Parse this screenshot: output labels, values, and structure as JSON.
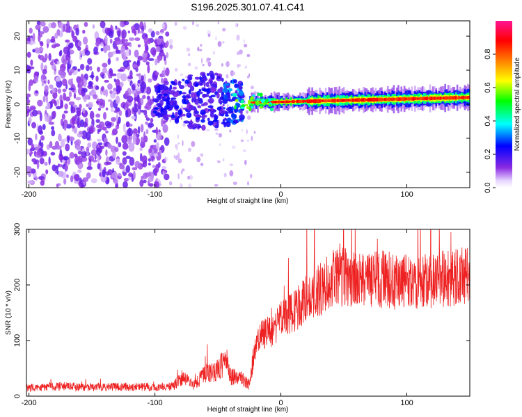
{
  "title": "S196.2025.301.07.41.C41",
  "chart_data": [
    {
      "type": "heatmap",
      "panel": "spectrogram",
      "xlabel": "Height of straight line (km)",
      "ylabel": "Frequency (Hz)",
      "xlim": [
        -202,
        150
      ],
      "ylim": [
        -24.5,
        24.5
      ],
      "xticks": [
        -200,
        -100,
        0,
        100
      ],
      "yticks": [
        -20,
        -10,
        0,
        10,
        20
      ],
      "colorbar": {
        "label": "Normalized spectral amplitude",
        "range": [
          0.0,
          1.0
        ],
        "ticks": [
          0.0,
          0.2,
          0.4,
          0.6,
          0.8
        ],
        "tick_labels": [
          "0.0",
          "0.2",
          "0.4",
          "0.6",
          "0.8"
        ],
        "colors": [
          "#ffffff",
          "#8a2be2",
          "#0000ff",
          "#00ffff",
          "#00ff00",
          "#ffff00",
          "#ff8000",
          "#ff0000",
          "#ff1493"
        ]
      },
      "regions": [
        {
          "name": "noise",
          "x_range": [
            -202,
            -90
          ],
          "freq_range": [
            -24,
            24
          ],
          "amplitude": 0.1
        },
        {
          "name": "onset",
          "x_range": [
            -100,
            -30
          ],
          "freq_range": [
            -7,
            8
          ],
          "amplitude": 0.25
        },
        {
          "name": "signal",
          "x_range": [
            -25,
            150
          ],
          "center_freq": [
            0.5,
            2.0
          ],
          "amplitude": 0.9
        }
      ]
    },
    {
      "type": "line",
      "panel": "snr",
      "xlabel": "Height of straight line (km)",
      "ylabel": "SNR (10 * v/v)",
      "xlim": [
        -202,
        150
      ],
      "ylim": [
        0,
        300
      ],
      "xticks": [
        -200,
        -100,
        0,
        100
      ],
      "yticks": [
        0,
        100,
        200,
        300
      ],
      "color": "#ee2222",
      "series": [
        {
          "name": "SNR",
          "x": [
            -202,
            -180,
            -150,
            -120,
            -100,
            -85,
            -78,
            -70,
            -60,
            -50,
            -44,
            -40,
            -35,
            -30,
            -25,
            -20,
            -15,
            -10,
            -5,
            0,
            10,
            20,
            30,
            40,
            50,
            60,
            80,
            100,
            120,
            150
          ],
          "values": [
            15,
            18,
            16,
            17,
            16,
            18,
            35,
            20,
            40,
            45,
            70,
            35,
            35,
            30,
            20,
            90,
            110,
            115,
            120,
            140,
            150,
            175,
            190,
            210,
            215,
            205,
            210,
            205,
            210,
            215
          ]
        }
      ]
    }
  ]
}
